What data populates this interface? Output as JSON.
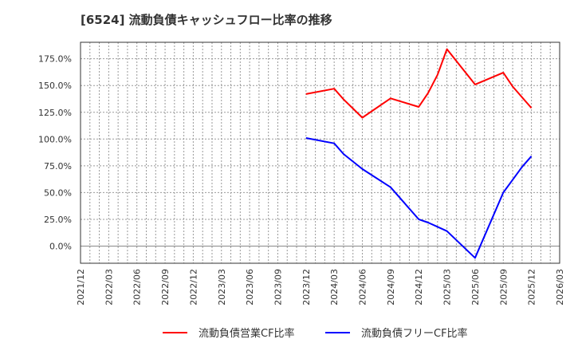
{
  "title": "[6524]  流動負債キャッシュフロー比率の推移",
  "legend": {
    "items": [
      {
        "label": "流動負債営業CF比率",
        "color": "#ff0000"
      },
      {
        "label": "流動負債フリーCF比率",
        "color": "#0000ff"
      }
    ]
  },
  "chart_data": {
    "type": "line",
    "title": "[6524]  流動負債キャッシュフロー比率の推移",
    "xlabel": "",
    "ylabel": "",
    "ylim": [
      -16,
      193
    ],
    "yticks": [
      "0.0%",
      "25.0%",
      "50.0%",
      "75.0%",
      "100.0%",
      "125.0%",
      "150.0%",
      "175.0%"
    ],
    "ytick_values": [
      0,
      25,
      50,
      75,
      100,
      125,
      150,
      175
    ],
    "xticks": [
      "2021/12",
      "2022/03",
      "2022/06",
      "2022/09",
      "2022/12",
      "2023/03",
      "2023/06",
      "2023/09",
      "2023/12",
      "2024/03",
      "2024/06",
      "2024/09",
      "2024/12",
      "2025/03",
      "2025/06",
      "2025/09",
      "2025/12",
      "2026/03"
    ],
    "grid": true,
    "legend_position": "bottom",
    "series": [
      {
        "name": "流動負債営業CF比率",
        "color": "#ff0000",
        "x": [
          "2023/12",
          "2024/03",
          "2024/04",
          "2024/06",
          "2024/09",
          "2024/12",
          "2025/01",
          "2025/02",
          "2025/03",
          "2025/06",
          "2025/09",
          "2025/10",
          "2025/12"
        ],
        "values": [
          142,
          147,
          137,
          120,
          138,
          130,
          143,
          160,
          184,
          151,
          162,
          149,
          129
        ]
      },
      {
        "name": "流動負債フリーCF比率",
        "color": "#0000ff",
        "x": [
          "2023/12",
          "2024/03",
          "2024/04",
          "2024/06",
          "2024/09",
          "2024/12",
          "2025/01",
          "2025/02",
          "2025/03",
          "2025/06",
          "2025/09",
          "2025/10",
          "2025/11",
          "2025/12"
        ],
        "values": [
          101,
          96,
          86,
          72,
          55,
          25,
          22,
          18,
          14,
          -11,
          50,
          62,
          74,
          84
        ]
      }
    ]
  }
}
